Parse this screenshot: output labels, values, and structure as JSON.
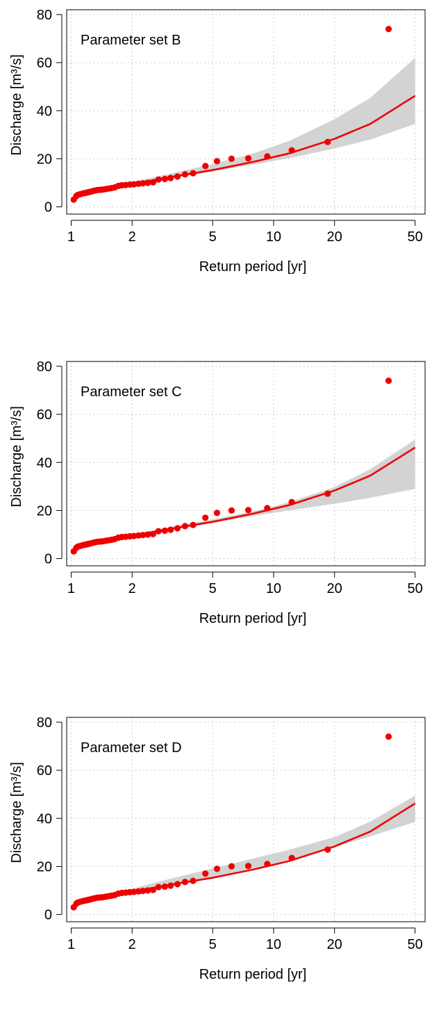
{
  "chart_data": [
    {
      "type": "scatter",
      "annotation": "Parameter set B",
      "xlabel": "Return period [yr]",
      "ylabel": "Discharge [m³/s]",
      "x_scale": "log",
      "xlim": [
        0.95,
        56
      ],
      "ylim": [
        -3,
        82
      ],
      "x_ticks": [
        1,
        2,
        5,
        10,
        20,
        50
      ],
      "x_tick_labels": [
        "1",
        "2",
        "5",
        "10",
        "20",
        "50"
      ],
      "y_ticks": [
        0,
        20,
        40,
        60,
        80
      ],
      "y_tick_labels": [
        "0",
        "20",
        "40",
        "60",
        "80"
      ],
      "grid": true,
      "series": [
        {
          "kind": "points",
          "x": [
            1.03,
            1.06,
            1.08,
            1.11,
            1.14,
            1.17,
            1.2,
            1.23,
            1.27,
            1.31,
            1.35,
            1.39,
            1.43,
            1.48,
            1.53,
            1.58,
            1.64,
            1.71,
            1.78,
            1.86,
            1.95,
            2.04,
            2.15,
            2.26,
            2.39,
            2.54,
            2.7,
            2.9,
            3.1,
            3.35,
            3.65,
            4.0,
            4.6,
            5.25,
            6.2,
            7.5,
            9.3,
            12.3,
            18.5,
            37
          ],
          "y": [
            3,
            4.5,
            5,
            5.3,
            5.6,
            5.8,
            6,
            6.2,
            6.5,
            6.8,
            7,
            7.1,
            7.2,
            7.4,
            7.6,
            7.8,
            8.1,
            8.7,
            9,
            9.1,
            9.3,
            9.4,
            9.6,
            9.8,
            10,
            10.2,
            11.4,
            11.6,
            12,
            12.6,
            13.5,
            14,
            17,
            19,
            20,
            20.2,
            21,
            23.5,
            27,
            74
          ]
        },
        {
          "kind": "fit",
          "x": [
            1.01,
            1.1,
            1.25,
            1.5,
            2,
            3,
            5,
            8,
            12,
            20,
            30,
            50
          ],
          "y": [
            3.5,
            4.7,
            6.1,
            7.6,
            9.5,
            12.2,
            15.3,
            18.8,
            22.3,
            28.3,
            34.5,
            46.2
          ]
        },
        {
          "kind": "ci_band",
          "x": [
            1.5,
            2,
            3,
            5,
            8,
            12,
            20,
            30,
            50
          ],
          "lower": [
            7.6,
            9.2,
            11.6,
            14.8,
            17.6,
            20.3,
            24.3,
            28,
            34.5
          ],
          "upper": [
            7.8,
            10.3,
            13.6,
            17.8,
            22.3,
            27.5,
            36.5,
            45.3,
            62
          ]
        }
      ]
    },
    {
      "type": "scatter",
      "annotation": "Parameter set C",
      "xlabel": "Return period [yr]",
      "ylabel": "Discharge [m³/s]",
      "x_scale": "log",
      "xlim": [
        0.95,
        56
      ],
      "ylim": [
        -3,
        82
      ],
      "x_ticks": [
        1,
        2,
        5,
        10,
        20,
        50
      ],
      "x_tick_labels": [
        "1",
        "2",
        "5",
        "10",
        "20",
        "50"
      ],
      "y_ticks": [
        0,
        20,
        40,
        60,
        80
      ],
      "y_tick_labels": [
        "0",
        "20",
        "40",
        "60",
        "80"
      ],
      "grid": true,
      "series": [
        {
          "kind": "points",
          "x": [
            1.03,
            1.06,
            1.08,
            1.11,
            1.14,
            1.17,
            1.2,
            1.23,
            1.27,
            1.31,
            1.35,
            1.39,
            1.43,
            1.48,
            1.53,
            1.58,
            1.64,
            1.71,
            1.78,
            1.86,
            1.95,
            2.04,
            2.15,
            2.26,
            2.39,
            2.54,
            2.7,
            2.9,
            3.1,
            3.35,
            3.65,
            4.0,
            4.6,
            5.25,
            6.2,
            7.5,
            9.3,
            12.3,
            18.5,
            37
          ],
          "y": [
            3,
            4.5,
            5,
            5.3,
            5.6,
            5.8,
            6,
            6.2,
            6.5,
            6.8,
            7,
            7.1,
            7.2,
            7.4,
            7.6,
            7.8,
            8.1,
            8.7,
            9,
            9.1,
            9.3,
            9.4,
            9.6,
            9.8,
            10,
            10.2,
            11.4,
            11.6,
            12,
            12.6,
            13.5,
            14,
            17,
            19,
            20,
            20.2,
            21,
            23.5,
            27,
            74
          ]
        },
        {
          "kind": "fit",
          "x": [
            1.01,
            1.1,
            1.25,
            1.5,
            2,
            3,
            5,
            8,
            12,
            20,
            30,
            50
          ],
          "y": [
            3.5,
            4.7,
            6.1,
            7.6,
            9.5,
            12.2,
            15.3,
            18.8,
            22.3,
            28.3,
            34.5,
            46.2
          ]
        },
        {
          "kind": "ci_band",
          "x": [
            1.5,
            2,
            3,
            5,
            8,
            12,
            20,
            30,
            50
          ],
          "lower": [
            7.3,
            9.0,
            11.7,
            14.8,
            17.8,
            20.1,
            22.8,
            25.3,
            29
          ],
          "upper": [
            8.0,
            10.0,
            13.0,
            16.3,
            19.7,
            23.5,
            29.8,
            37.2,
            49.5
          ]
        }
      ]
    },
    {
      "type": "scatter",
      "annotation": "Parameter set D",
      "xlabel": "Return period [yr]",
      "ylabel": "Discharge [m³/s]",
      "x_scale": "log",
      "xlim": [
        0.95,
        56
      ],
      "ylim": [
        -3,
        82
      ],
      "x_ticks": [
        1,
        2,
        5,
        10,
        20,
        50
      ],
      "x_tick_labels": [
        "1",
        "2",
        "5",
        "10",
        "20",
        "50"
      ],
      "y_ticks": [
        0,
        20,
        40,
        60,
        80
      ],
      "y_tick_labels": [
        "0",
        "20",
        "40",
        "60",
        "80"
      ],
      "grid": true,
      "series": [
        {
          "kind": "points",
          "x": [
            1.03,
            1.06,
            1.08,
            1.11,
            1.14,
            1.17,
            1.2,
            1.23,
            1.27,
            1.31,
            1.35,
            1.39,
            1.43,
            1.48,
            1.53,
            1.58,
            1.64,
            1.71,
            1.78,
            1.86,
            1.95,
            2.04,
            2.15,
            2.26,
            2.39,
            2.54,
            2.7,
            2.9,
            3.1,
            3.35,
            3.65,
            4.0,
            4.6,
            5.25,
            6.2,
            7.5,
            9.3,
            12.3,
            18.5,
            37
          ],
          "y": [
            3,
            4.5,
            5,
            5.3,
            5.6,
            5.8,
            6,
            6.2,
            6.5,
            6.8,
            7,
            7.1,
            7.2,
            7.4,
            7.6,
            7.8,
            8.1,
            8.7,
            9,
            9.1,
            9.3,
            9.4,
            9.6,
            9.8,
            10,
            10.2,
            11.4,
            11.6,
            12,
            12.6,
            13.5,
            14,
            17,
            19,
            20,
            20.2,
            21,
            23.5,
            27,
            74
          ]
        },
        {
          "kind": "fit",
          "x": [
            1.01,
            1.1,
            1.25,
            1.5,
            2,
            3,
            5,
            8,
            12,
            20,
            30,
            50
          ],
          "y": [
            3.5,
            4.7,
            6.1,
            7.6,
            9.5,
            12.2,
            15.3,
            18.8,
            22.3,
            28.3,
            34.5,
            46.2
          ]
        },
        {
          "kind": "ci_band",
          "x": [
            1.5,
            2,
            3,
            5,
            8,
            12,
            20,
            30,
            50
          ],
          "lower": [
            7.8,
            9.6,
            12.4,
            15.8,
            19.3,
            22.8,
            28.0,
            32.5,
            38.5
          ],
          "upper": [
            8.4,
            10.8,
            14.6,
            19.2,
            23.4,
            27.0,
            32.2,
            38.6,
            49.5
          ]
        }
      ]
    }
  ],
  "colors": {
    "points": "#ee0000",
    "fit_line": "#ee0000",
    "band": "#d3d3d3",
    "grid": "#c8c8c8",
    "axis": "#000000"
  }
}
